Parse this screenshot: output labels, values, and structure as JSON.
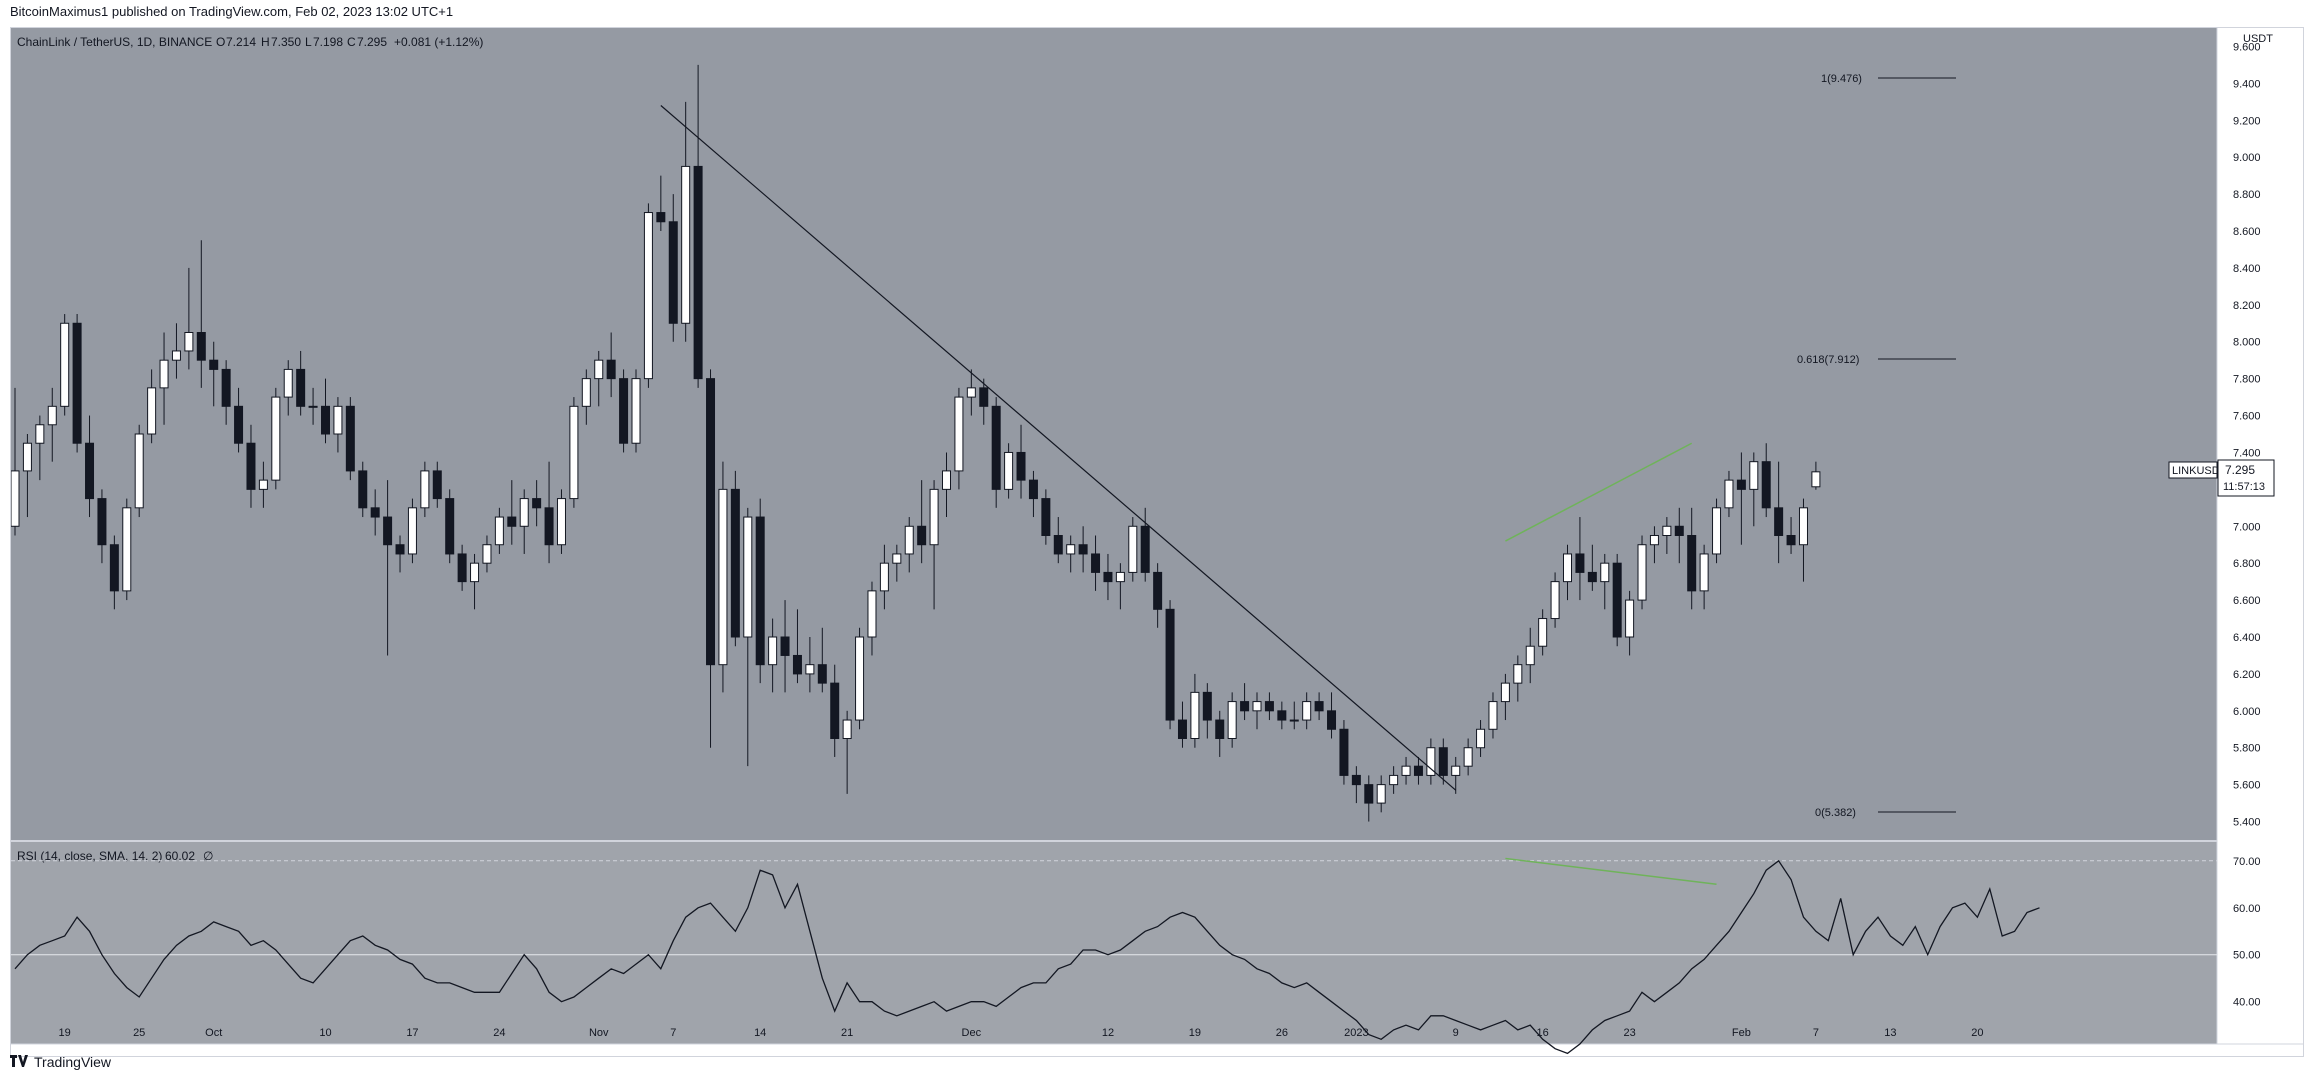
{
  "header": {
    "publish_line": "BitcoinMaximus1 published on TradingView.com, Feb 02, 2023 13:02 UTC+1"
  },
  "legend": {
    "symbol": "ChainLink / TetherUS, 1D, BINANCE",
    "open_label": "O",
    "open": "7.214",
    "high_label": "H",
    "high": "7.350",
    "low_label": "L",
    "low": "7.198",
    "close_label": "C",
    "close": "7.295",
    "change": "+0.081 (+1.12%)"
  },
  "axis": {
    "currency": "USDT",
    "price_ticks": [
      "9.600",
      "9.400",
      "9.200",
      "9.000",
      "8.800",
      "8.600",
      "8.400",
      "8.200",
      "8.000",
      "7.800",
      "7.600",
      "7.400",
      "7.200",
      "7.000",
      "6.800",
      "6.600",
      "6.400",
      "6.200",
      "6.000",
      "5.800",
      "5.600",
      "5.400"
    ],
    "date_ticks": [
      "19",
      "25",
      "Oct",
      "10",
      "17",
      "24",
      "Nov",
      "7",
      "14",
      "21",
      "Dec",
      "12",
      "19",
      "26",
      "2023",
      "9",
      "16",
      "23",
      "Feb",
      "7",
      "13",
      "20"
    ]
  },
  "price_tag": {
    "symbol": "LINKUSDT",
    "price": "7.295",
    "countdown": "11:57:13",
    "color": "#ffffff"
  },
  "fib": {
    "level_1": "1(9.476)",
    "level_618": "0.618(7.912)",
    "level_0": "0(5.382)"
  },
  "rsi": {
    "label": "RSI (14, close, SMA, 14, 2)",
    "value": "60.02",
    "extra": "∅",
    "ticks": [
      "70.00",
      "60.00",
      "50.00",
      "40.00"
    ]
  },
  "footer": {
    "brand": "TradingView",
    "logo_icon": "tradingview-logo-icon"
  },
  "colors": {
    "pane_bg": "#959aa3",
    "rsi_bg": "#a0a4ab",
    "bull_candle": "#ffffff",
    "bear_candle": "#131722",
    "trendline": "#131722",
    "divergence": "#6fb35a"
  },
  "chart_data": [
    {
      "type": "candlestick",
      "title": "ChainLink / TetherUS, 1D, BINANCE",
      "ylabel": "USDT",
      "ylim": [
        5.3,
        9.7
      ],
      "x_start": "2022-09-15",
      "x_end": "2023-02-02",
      "candles": [
        [
          7.0,
          7.75,
          6.95,
          7.3
        ],
        [
          7.3,
          7.5,
          7.05,
          7.45
        ],
        [
          7.45,
          7.6,
          7.25,
          7.55
        ],
        [
          7.55,
          7.75,
          7.35,
          7.65
        ],
        [
          7.65,
          8.15,
          7.6,
          8.1
        ],
        [
          8.1,
          8.15,
          7.4,
          7.45
        ],
        [
          7.45,
          7.6,
          7.05,
          7.15
        ],
        [
          7.15,
          7.2,
          6.8,
          6.9
        ],
        [
          6.9,
          6.95,
          6.55,
          6.65
        ],
        [
          6.65,
          7.15,
          6.6,
          7.1
        ],
        [
          7.1,
          7.55,
          7.05,
          7.5
        ],
        [
          7.5,
          7.85,
          7.45,
          7.75
        ],
        [
          7.75,
          8.05,
          7.55,
          7.9
        ],
        [
          7.9,
          8.1,
          7.8,
          7.95
        ],
        [
          7.95,
          8.4,
          7.85,
          8.05
        ],
        [
          8.05,
          8.55,
          7.75,
          7.9
        ],
        [
          7.9,
          8.0,
          7.65,
          7.85
        ],
        [
          7.85,
          7.9,
          7.55,
          7.65
        ],
        [
          7.65,
          7.75,
          7.4,
          7.45
        ],
        [
          7.45,
          7.55,
          7.1,
          7.2
        ],
        [
          7.2,
          7.35,
          7.1,
          7.25
        ],
        [
          7.25,
          7.75,
          7.2,
          7.7
        ],
        [
          7.7,
          7.9,
          7.6,
          7.85
        ],
        [
          7.85,
          7.95,
          7.6,
          7.65
        ],
        [
          7.65,
          7.75,
          7.55,
          7.65
        ],
        [
          7.65,
          7.8,
          7.45,
          7.5
        ],
        [
          7.5,
          7.7,
          7.4,
          7.65
        ],
        [
          7.65,
          7.7,
          7.25,
          7.3
        ],
        [
          7.3,
          7.35,
          7.05,
          7.1
        ],
        [
          7.1,
          7.2,
          6.95,
          7.05
        ],
        [
          7.05,
          7.25,
          6.3,
          6.9
        ],
        [
          6.9,
          6.95,
          6.75,
          6.85
        ],
        [
          6.85,
          7.15,
          6.8,
          7.1
        ],
        [
          7.1,
          7.35,
          7.05,
          7.3
        ],
        [
          7.3,
          7.35,
          7.1,
          7.15
        ],
        [
          7.15,
          7.2,
          6.8,
          6.85
        ],
        [
          6.85,
          6.9,
          6.65,
          6.7
        ],
        [
          6.7,
          6.85,
          6.55,
          6.8
        ],
        [
          6.8,
          6.95,
          6.75,
          6.9
        ],
        [
          6.9,
          7.1,
          6.85,
          7.05
        ],
        [
          7.05,
          7.25,
          6.9,
          7.0
        ],
        [
          7.0,
          7.2,
          6.85,
          7.15
        ],
        [
          7.15,
          7.25,
          7.0,
          7.1
        ],
        [
          7.1,
          7.35,
          6.8,
          6.9
        ],
        [
          6.9,
          7.2,
          6.85,
          7.15
        ],
        [
          7.15,
          7.7,
          7.1,
          7.65
        ],
        [
          7.65,
          7.85,
          7.55,
          7.8
        ],
        [
          7.8,
          7.95,
          7.65,
          7.9
        ],
        [
          7.9,
          8.05,
          7.7,
          7.8
        ],
        [
          7.8,
          7.85,
          7.4,
          7.45
        ],
        [
          7.45,
          7.85,
          7.4,
          7.8
        ],
        [
          7.8,
          8.75,
          7.75,
          8.7
        ],
        [
          8.7,
          8.9,
          8.6,
          8.65
        ],
        [
          8.65,
          8.8,
          8.0,
          8.1
        ],
        [
          8.1,
          9.3,
          8.0,
          8.95
        ],
        [
          8.95,
          9.5,
          7.75,
          7.8
        ],
        [
          7.8,
          7.85,
          5.8,
          6.25
        ],
        [
          6.25,
          7.35,
          6.1,
          7.2
        ],
        [
          7.2,
          7.3,
          6.35,
          6.4
        ],
        [
          6.4,
          7.1,
          5.7,
          7.05
        ],
        [
          7.05,
          7.15,
          6.15,
          6.25
        ],
        [
          6.25,
          6.5,
          6.1,
          6.4
        ],
        [
          6.4,
          6.6,
          6.1,
          6.3
        ],
        [
          6.3,
          6.55,
          6.15,
          6.2
        ],
        [
          6.2,
          6.4,
          6.1,
          6.25
        ],
        [
          6.25,
          6.45,
          6.1,
          6.15
        ],
        [
          6.15,
          6.25,
          5.75,
          5.85
        ],
        [
          5.85,
          6.0,
          5.55,
          5.95
        ],
        [
          5.95,
          6.45,
          5.9,
          6.4
        ],
        [
          6.4,
          6.7,
          6.3,
          6.65
        ],
        [
          6.65,
          6.9,
          6.55,
          6.8
        ],
        [
          6.8,
          6.9,
          6.7,
          6.85
        ],
        [
          6.85,
          7.05,
          6.75,
          7.0
        ],
        [
          7.0,
          7.25,
          6.8,
          6.9
        ],
        [
          6.9,
          7.25,
          6.55,
          7.2
        ],
        [
          7.2,
          7.4,
          7.05,
          7.3
        ],
        [
          7.3,
          7.75,
          7.2,
          7.7
        ],
        [
          7.7,
          7.85,
          7.6,
          7.75
        ],
        [
          7.75,
          7.8,
          7.55,
          7.65
        ],
        [
          7.65,
          7.7,
          7.1,
          7.2
        ],
        [
          7.2,
          7.45,
          7.15,
          7.4
        ],
        [
          7.4,
          7.55,
          7.15,
          7.25
        ],
        [
          7.25,
          7.3,
          7.05,
          7.15
        ],
        [
          7.15,
          7.2,
          6.9,
          6.95
        ],
        [
          6.95,
          7.05,
          6.8,
          6.85
        ],
        [
          6.85,
          6.95,
          6.75,
          6.9
        ],
        [
          6.9,
          7.0,
          6.75,
          6.85
        ],
        [
          6.85,
          6.95,
          6.65,
          6.75
        ],
        [
          6.75,
          6.85,
          6.6,
          6.7
        ],
        [
          6.7,
          6.8,
          6.55,
          6.75
        ],
        [
          6.75,
          7.05,
          6.7,
          7.0
        ],
        [
          7.0,
          7.1,
          6.7,
          6.75
        ],
        [
          6.75,
          6.8,
          6.45,
          6.55
        ],
        [
          6.55,
          6.6,
          5.9,
          5.95
        ],
        [
          5.95,
          6.05,
          5.8,
          5.85
        ],
        [
          5.85,
          6.2,
          5.8,
          6.1
        ],
        [
          6.1,
          6.15,
          5.85,
          5.95
        ],
        [
          5.95,
          6.0,
          5.75,
          5.85
        ],
        [
          5.85,
          6.1,
          5.8,
          6.05
        ],
        [
          6.05,
          6.15,
          5.95,
          6.0
        ],
        [
          6.0,
          6.1,
          5.9,
          6.05
        ],
        [
          6.05,
          6.1,
          5.95,
          6.0
        ],
        [
          6.0,
          6.05,
          5.9,
          5.95
        ],
        [
          5.95,
          6.05,
          5.9,
          5.95
        ],
        [
          5.95,
          6.1,
          5.9,
          6.05
        ],
        [
          6.05,
          6.1,
          5.95,
          6.0
        ],
        [
          6.0,
          6.1,
          5.85,
          5.9
        ],
        [
          5.9,
          5.95,
          5.6,
          5.65
        ],
        [
          5.65,
          5.7,
          5.5,
          5.6
        ],
        [
          5.6,
          5.65,
          5.4,
          5.5
        ],
        [
          5.5,
          5.65,
          5.45,
          5.6
        ],
        [
          5.6,
          5.7,
          5.55,
          5.65
        ],
        [
          5.65,
          5.75,
          5.6,
          5.7
        ],
        [
          5.7,
          5.75,
          5.6,
          5.65
        ],
        [
          5.65,
          5.85,
          5.6,
          5.8
        ],
        [
          5.8,
          5.85,
          5.6,
          5.65
        ],
        [
          5.65,
          5.75,
          5.55,
          5.7
        ],
        [
          5.7,
          5.85,
          5.65,
          5.8
        ],
        [
          5.8,
          5.95,
          5.75,
          5.9
        ],
        [
          5.9,
          6.1,
          5.85,
          6.05
        ],
        [
          6.05,
          6.2,
          5.95,
          6.15
        ],
        [
          6.15,
          6.3,
          6.05,
          6.25
        ],
        [
          6.25,
          6.45,
          6.15,
          6.35
        ],
        [
          6.35,
          6.55,
          6.3,
          6.5
        ],
        [
          6.5,
          6.75,
          6.45,
          6.7
        ],
        [
          6.7,
          6.9,
          6.6,
          6.85
        ],
        [
          6.85,
          7.05,
          6.6,
          6.75
        ],
        [
          6.75,
          6.9,
          6.65,
          6.7
        ],
        [
          6.7,
          6.85,
          6.55,
          6.8
        ],
        [
          6.8,
          6.85,
          6.35,
          6.4
        ],
        [
          6.4,
          6.65,
          6.3,
          6.6
        ],
        [
          6.6,
          6.95,
          6.55,
          6.9
        ],
        [
          6.9,
          7.0,
          6.8,
          6.95
        ],
        [
          6.95,
          7.05,
          6.85,
          7.0
        ],
        [
          7.0,
          7.1,
          6.8,
          6.95
        ],
        [
          6.95,
          7.1,
          6.55,
          6.65
        ],
        [
          6.65,
          6.9,
          6.55,
          6.85
        ],
        [
          6.85,
          7.15,
          6.8,
          7.1
        ],
        [
          7.1,
          7.3,
          7.05,
          7.25
        ],
        [
          7.25,
          7.4,
          6.9,
          7.2
        ],
        [
          7.2,
          7.4,
          7.0,
          7.35
        ],
        [
          7.35,
          7.45,
          7.05,
          7.1
        ],
        [
          7.1,
          7.35,
          6.8,
          6.95
        ],
        [
          6.95,
          7.05,
          6.85,
          6.9
        ],
        [
          6.9,
          7.15,
          6.7,
          7.1
        ],
        [
          7.214,
          7.35,
          7.198,
          7.295
        ]
      ],
      "trendline": [
        [
          "2022-11-06",
          9.28
        ],
        [
          "2023-01-09",
          5.57
        ]
      ],
      "divergence_line": [
        [
          "2023-01-13",
          6.92
        ],
        [
          "2023-01-28",
          7.45
        ]
      ]
    },
    {
      "type": "line",
      "title": "RSI (14, close, SMA, 14, 2)",
      "ylim": [
        31,
        74
      ],
      "bands": [
        70,
        50
      ],
      "values": [
        47,
        50,
        52,
        53,
        54,
        58,
        55,
        50,
        46,
        43,
        41,
        45,
        49,
        52,
        54,
        55,
        57,
        56,
        55,
        52,
        53,
        51,
        48,
        45,
        44,
        47,
        50,
        53,
        54,
        52,
        51,
        49,
        48,
        45,
        44,
        44,
        43,
        42,
        42,
        42,
        46,
        50,
        47,
        42,
        40,
        41,
        43,
        45,
        47,
        46,
        48,
        50,
        47,
        53,
        58,
        60,
        61,
        58,
        55,
        60,
        68,
        67,
        60,
        65,
        55,
        45,
        38,
        44,
        40,
        40,
        38,
        37,
        38,
        39,
        40,
        38,
        39,
        40,
        40,
        39,
        41,
        43,
        44,
        44,
        47,
        48,
        51,
        51,
        50,
        51,
        53,
        55,
        56,
        58,
        59,
        58,
        55,
        52,
        50,
        49,
        47,
        46,
        44,
        43,
        44,
        42,
        40,
        38,
        36,
        33,
        32,
        34,
        35,
        34,
        37,
        37,
        36,
        35,
        34,
        35,
        36,
        34,
        35,
        32,
        30,
        29,
        31,
        34,
        36,
        37,
        38,
        42,
        40,
        42,
        44,
        47,
        49,
        52,
        55,
        59,
        63,
        68,
        70,
        66,
        58,
        55,
        53,
        62,
        50,
        55,
        58,
        54,
        52,
        56,
        50,
        56,
        60,
        61,
        58,
        64,
        54,
        55,
        59,
        60
      ]
    }
  ]
}
